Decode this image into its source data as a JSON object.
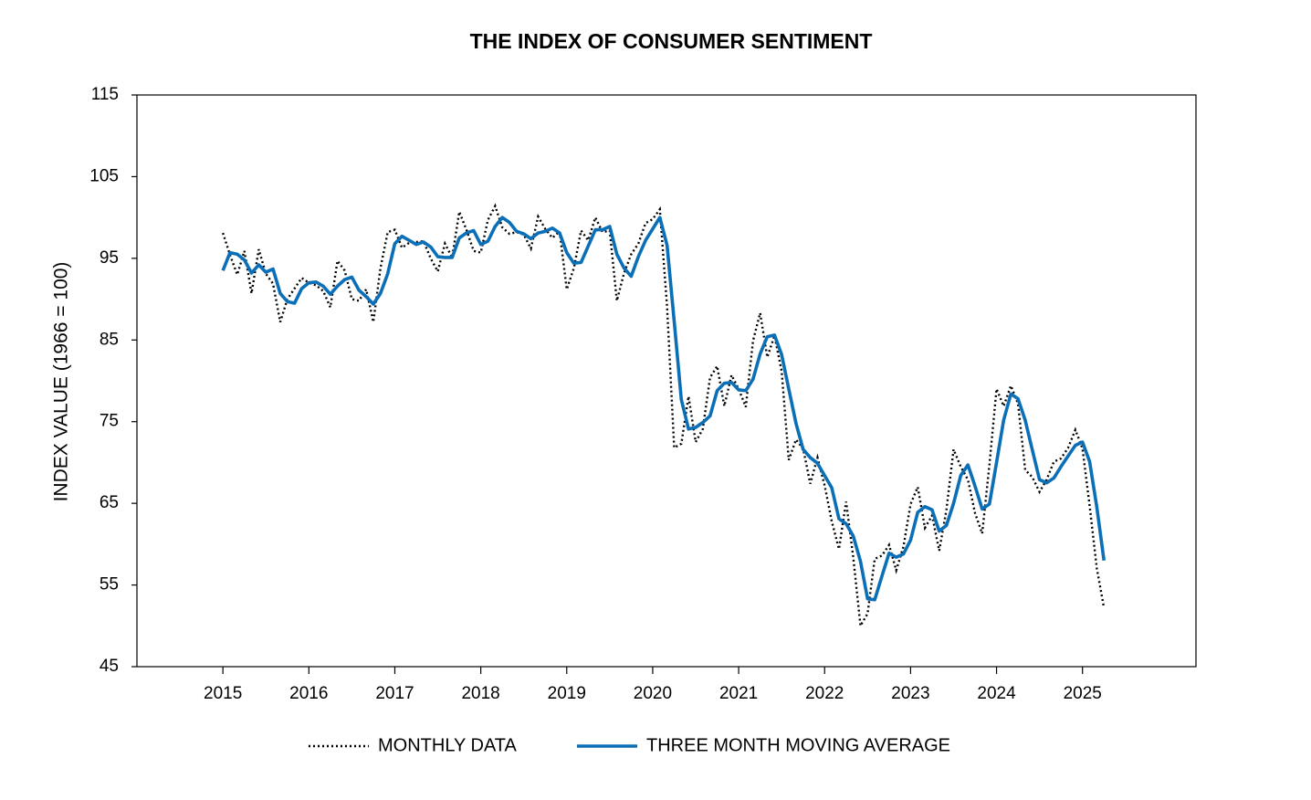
{
  "chart_data": {
    "type": "line",
    "title": "THE INDEX OF CONSUMER SENTIMENT",
    "y_label": "INDEX VALUE (1966 = 100)",
    "x": [
      2015,
      2015.083,
      2015.167,
      2015.25,
      2015.333,
      2015.417,
      2015.5,
      2015.583,
      2015.667,
      2015.75,
      2015.833,
      2015.917,
      2016,
      2016.083,
      2016.167,
      2016.25,
      2016.333,
      2016.417,
      2016.5,
      2016.583,
      2016.667,
      2016.75,
      2016.833,
      2016.917,
      2017,
      2017.083,
      2017.167,
      2017.25,
      2017.333,
      2017.417,
      2017.5,
      2017.583,
      2017.667,
      2017.75,
      2017.833,
      2017.917,
      2018,
      2018.083,
      2018.167,
      2018.25,
      2018.333,
      2018.417,
      2018.5,
      2018.583,
      2018.667,
      2018.75,
      2018.833,
      2018.917,
      2019,
      2019.083,
      2019.167,
      2019.25,
      2019.333,
      2019.417,
      2019.5,
      2019.583,
      2019.667,
      2019.75,
      2019.833,
      2019.917,
      2020,
      2020.083,
      2020.167,
      2020.25,
      2020.333,
      2020.417,
      2020.5,
      2020.583,
      2020.667,
      2020.75,
      2020.833,
      2020.917,
      2021,
      2021.083,
      2021.167,
      2021.25,
      2021.333,
      2021.417,
      2021.5,
      2021.583,
      2021.667,
      2021.75,
      2021.833,
      2021.917,
      2022,
      2022.083,
      2022.167,
      2022.25,
      2022.333,
      2022.417,
      2022.5,
      2022.583,
      2022.667,
      2022.75,
      2022.833,
      2022.917,
      2023,
      2023.083,
      2023.167,
      2023.25,
      2023.333,
      2023.417,
      2023.5,
      2023.583,
      2023.667,
      2023.75,
      2023.833,
      2023.917,
      2024,
      2024.083,
      2024.167,
      2024.25,
      2024.333,
      2024.417,
      2024.5,
      2024.583,
      2024.667,
      2024.75,
      2024.833,
      2024.917,
      2025,
      2025.083,
      2025.167,
      2025.25
    ],
    "series": [
      {
        "name": "MONTHLY DATA",
        "color": "#000000",
        "style": "dotted",
        "values": [
          98.1,
          95.4,
          93.0,
          95.9,
          90.7,
          96.1,
          93.1,
          91.9,
          87.2,
          90.0,
          91.3,
          92.6,
          92.0,
          91.7,
          91.0,
          89.0,
          94.7,
          93.5,
          90.0,
          89.8,
          91.2,
          87.2,
          93.8,
          98.2,
          98.5,
          96.3,
          96.9,
          97.0,
          97.1,
          95.0,
          93.4,
          96.8,
          95.1,
          100.7,
          98.5,
          95.9,
          95.7,
          99.7,
          101.4,
          98.8,
          98.0,
          98.2,
          97.9,
          96.2,
          100.1,
          98.6,
          97.5,
          98.3,
          91.2,
          93.8,
          98.4,
          97.2,
          100.0,
          98.2,
          98.4,
          89.8,
          93.2,
          95.5,
          96.8,
          99.3,
          99.8,
          101.0,
          89.1,
          71.8,
          72.3,
          78.1,
          72.5,
          74.1,
          80.4,
          81.8,
          76.9,
          80.7,
          79.0,
          76.8,
          84.9,
          88.3,
          82.9,
          85.5,
          81.2,
          70.3,
          72.8,
          71.7,
          67.4,
          70.6,
          67.2,
          62.8,
          59.4,
          65.2,
          58.4,
          50.0,
          51.5,
          58.2,
          58.6,
          59.9,
          56.8,
          59.7,
          64.9,
          67.0,
          62.0,
          63.5,
          59.2,
          64.2,
          71.6,
          69.5,
          67.9,
          63.8,
          61.3,
          69.7,
          79.0,
          76.9,
          79.4,
          77.2,
          69.1,
          68.2,
          66.4,
          67.9,
          70.1,
          70.5,
          71.8,
          74.0,
          71.7,
          64.7,
          57.0,
          52.2
        ]
      },
      {
        "name": "THREE MONTH MOVING AVERAGE",
        "color": "#0b6fb8",
        "style": "solid",
        "values": [
          93.5,
          95.7,
          95.5,
          94.8,
          93.2,
          94.2,
          93.3,
          93.7,
          90.7,
          89.7,
          89.5,
          91.3,
          92.0,
          92.1,
          91.6,
          90.6,
          91.6,
          92.4,
          92.7,
          91.1,
          90.3,
          89.4,
          90.7,
          93.1,
          96.8,
          97.7,
          97.2,
          96.7,
          97.0,
          96.4,
          95.2,
          95.1,
          95.1,
          97.5,
          98.1,
          98.4,
          96.7,
          97.1,
          98.9,
          100.0,
          99.4,
          98.3,
          98.0,
          97.4,
          98.1,
          98.3,
          98.7,
          98.1,
          95.7,
          94.4,
          94.5,
          96.5,
          98.5,
          98.5,
          98.9,
          95.5,
          93.8,
          92.8,
          95.2,
          97.2,
          98.6,
          100.0,
          96.6,
          87.3,
          77.7,
          74.1,
          74.3,
          74.9,
          75.7,
          78.8,
          79.7,
          79.8,
          78.9,
          78.8,
          80.2,
          83.3,
          85.4,
          85.6,
          83.2,
          79.0,
          74.8,
          71.6,
          70.6,
          69.9,
          68.4,
          66.9,
          63.1,
          62.5,
          61.0,
          57.9,
          53.3,
          53.2,
          56.1,
          58.9,
          58.4,
          58.8,
          60.5,
          63.9,
          64.6,
          64.2,
          61.6,
          62.3,
          65.0,
          68.4,
          69.7,
          67.1,
          64.3,
          64.9,
          70.0,
          75.2,
          78.4,
          77.8,
          75.2,
          71.5,
          67.9,
          67.5,
          68.1,
          69.5,
          70.8,
          72.1,
          72.5,
          70.1,
          64.5,
          58.0
        ]
      }
    ],
    "xlim": [
      2014,
      2026.32
    ],
    "xticks": [
      2015,
      2016,
      2017,
      2018,
      2019,
      2020,
      2021,
      2022,
      2023,
      2024,
      2025
    ],
    "ylim": [
      45,
      115
    ],
    "yticks": [
      45,
      55,
      65,
      75,
      85,
      95,
      105,
      115
    ],
    "legend": "bottom"
  }
}
